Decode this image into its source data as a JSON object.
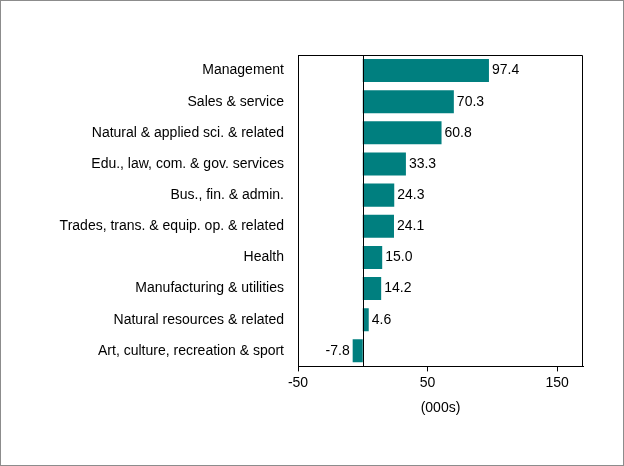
{
  "chart_data": {
    "type": "bar",
    "orientation": "horizontal",
    "categories": [
      "Management",
      "Sales & service",
      "Natural & applied sci. & related",
      "Edu., law, com. & gov. services",
      "Bus., fin. & admin.",
      "Trades, trans. & equip. op. & related",
      "Health",
      "Manufacturing & utilities",
      "Natural resources & related",
      "Art, culture, recreation & sport"
    ],
    "values": [
      97.4,
      70.3,
      60.8,
      33.3,
      24.3,
      24.1,
      15.0,
      14.2,
      4.6,
      -7.8
    ],
    "value_labels": [
      "97.4",
      "70.3",
      "60.8",
      "33.3",
      "24.3",
      "24.1",
      "15.0",
      "14.2",
      "4.6",
      "-7.8"
    ],
    "data_labels": true,
    "color": "#007f7f",
    "x_label": "(000s)",
    "xlim": [
      -50,
      170
    ],
    "xticks": [
      -50,
      50,
      150
    ],
    "grid": false
  }
}
